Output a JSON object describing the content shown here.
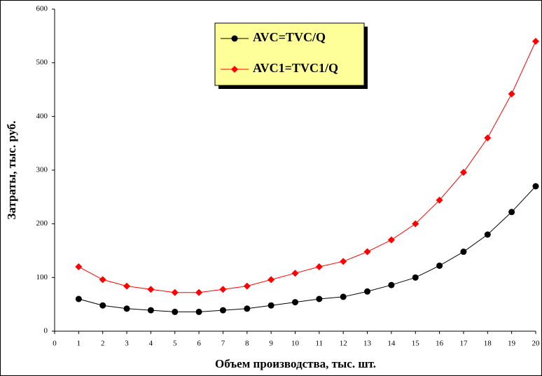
{
  "chart_data": {
    "type": "line",
    "x": [
      1,
      2,
      3,
      4,
      5,
      6,
      7,
      8,
      9,
      10,
      11,
      12,
      13,
      14,
      15,
      16,
      17,
      18,
      19,
      20
    ],
    "series": [
      {
        "name": "AVC=TVC/Q",
        "color": "#000000",
        "marker": "circle",
        "values": [
          60,
          48,
          42,
          39,
          36,
          36,
          39,
          42,
          48,
          54,
          60,
          64,
          74,
          86,
          100,
          122,
          148,
          180,
          222,
          270
        ]
      },
      {
        "name": "AVC1=TVC1/Q",
        "color": "#ff0000",
        "marker": "diamond",
        "values": [
          120,
          96,
          84,
          78,
          72,
          72,
          78,
          84,
          96,
          108,
          120,
          130,
          148,
          170,
          200,
          244,
          296,
          360,
          442,
          540
        ]
      }
    ],
    "xlabel": "Объем производства, тыс. шт.",
    "ylabel": "Затраты, тыс. руб.",
    "xlim": [
      0,
      20
    ],
    "xticks": [
      0,
      1,
      2,
      3,
      4,
      5,
      6,
      7,
      8,
      9,
      10,
      11,
      12,
      13,
      14,
      15,
      16,
      17,
      18,
      19,
      20
    ],
    "ylim": [
      0,
      600
    ],
    "yticks": [
      0,
      100,
      200,
      300,
      400,
      500,
      600
    ],
    "grid": false,
    "legend": "top"
  }
}
